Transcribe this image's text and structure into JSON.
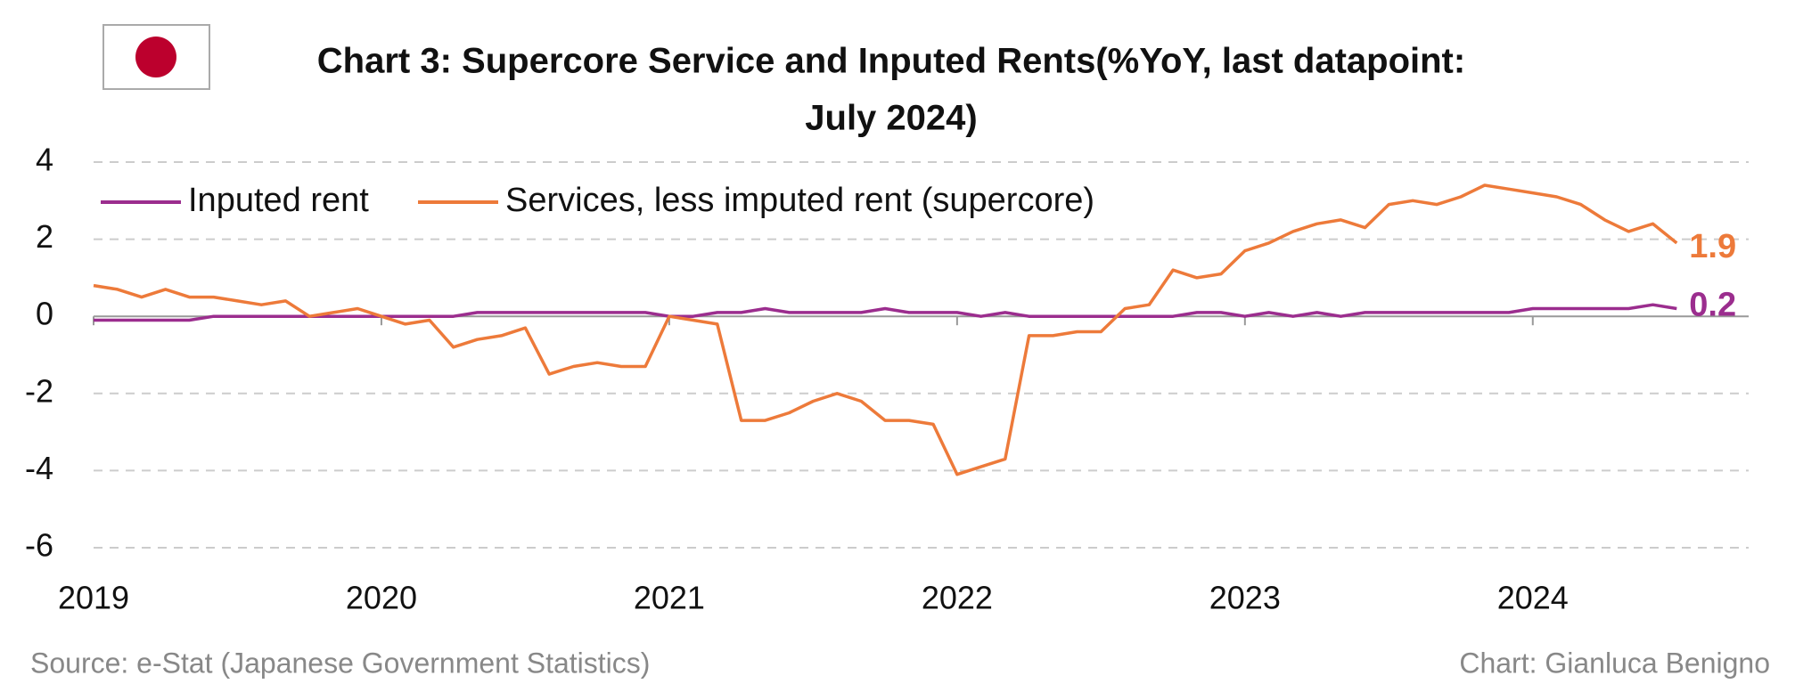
{
  "chart_data": {
    "type": "line",
    "title": [
      "Chart 3: Supercore Service and Inputed Rents(%YoY, last datapoint:",
      "July 2024)"
    ],
    "source": "Source: e-Stat (Japanese Government Statistics)",
    "credit": "Chart: Gianluca Benigno",
    "x": [
      2019,
      2019.083,
      2019.167,
      2019.25,
      2019.333,
      2019.417,
      2019.5,
      2019.583,
      2019.667,
      2019.75,
      2019.833,
      2019.917,
      2020,
      2020.083,
      2020.167,
      2020.25,
      2020.333,
      2020.417,
      2020.5,
      2020.583,
      2020.667,
      2020.75,
      2020.833,
      2020.917,
      2021,
      2021.083,
      2021.167,
      2021.25,
      2021.333,
      2021.417,
      2021.5,
      2021.583,
      2021.667,
      2021.75,
      2021.833,
      2021.917,
      2022,
      2022.083,
      2022.167,
      2022.25,
      2022.333,
      2022.417,
      2022.5,
      2022.583,
      2022.667,
      2022.75,
      2022.833,
      2022.917,
      2023,
      2023.083,
      2023.167,
      2023.25,
      2023.333,
      2023.417,
      2023.5,
      2023.583,
      2023.667,
      2023.75,
      2023.833,
      2023.917,
      2024,
      2024.083,
      2024.167,
      2024.25,
      2024.333,
      2024.417,
      2024.5
    ],
    "series": [
      {
        "name": "Inputed rent",
        "color": "#9b2d8e",
        "values": [
          -0.1,
          -0.1,
          -0.1,
          -0.1,
          -0.1,
          0,
          0,
          0,
          0,
          0,
          0,
          0,
          0,
          0,
          0,
          0,
          0.1,
          0.1,
          0.1,
          0.1,
          0.1,
          0.1,
          0.1,
          0.1,
          0,
          0,
          0.1,
          0.1,
          0.2,
          0.1,
          0.1,
          0.1,
          0.1,
          0.2,
          0.1,
          0.1,
          0.1,
          0,
          0.1,
          0,
          0,
          0,
          0,
          0,
          0,
          0,
          0.1,
          0.1,
          0,
          0.1,
          0,
          0.1,
          0,
          0.1,
          0.1,
          0.1,
          0.1,
          0.1,
          0.1,
          0.1,
          0.2,
          0.2,
          0.2,
          0.2,
          0.2,
          0.3,
          0.2
        ]
      },
      {
        "name": "Services, less imputed rent (supercore)",
        "color": "#ed7a3a",
        "values": [
          0.8,
          0.7,
          0.5,
          0.7,
          0.5,
          0.5,
          0.4,
          0.3,
          0.4,
          0,
          0.1,
          0.2,
          0,
          -0.2,
          -0.1,
          -0.8,
          -0.6,
          -0.5,
          -0.3,
          -1.5,
          -1.3,
          -1.2,
          -1.3,
          -1.3,
          0,
          -0.1,
          -0.2,
          -2.7,
          -2.7,
          -2.5,
          -2.2,
          -2,
          -2.2,
          -2.7,
          -2.7,
          -2.8,
          -4.1,
          -3.9,
          -3.7,
          -0.5,
          -0.5,
          -0.4,
          -0.4,
          0.2,
          0.3,
          1.2,
          1,
          1.1,
          1.7,
          1.9,
          2.2,
          2.4,
          2.5,
          2.3,
          2.9,
          3,
          2.9,
          3.1,
          3.4,
          3.3,
          3.2,
          3.1,
          2.9,
          2.5,
          2.2,
          2.4,
          1.9
        ]
      }
    ],
    "xlim": [
      2019,
      2024.75
    ],
    "xticks": [
      2019,
      2020,
      2021,
      2022,
      2023,
      2024
    ],
    "ylim": [
      -6,
      4
    ],
    "yticks": [
      -6,
      -4,
      -2,
      0,
      2,
      4
    ],
    "grid": true
  }
}
